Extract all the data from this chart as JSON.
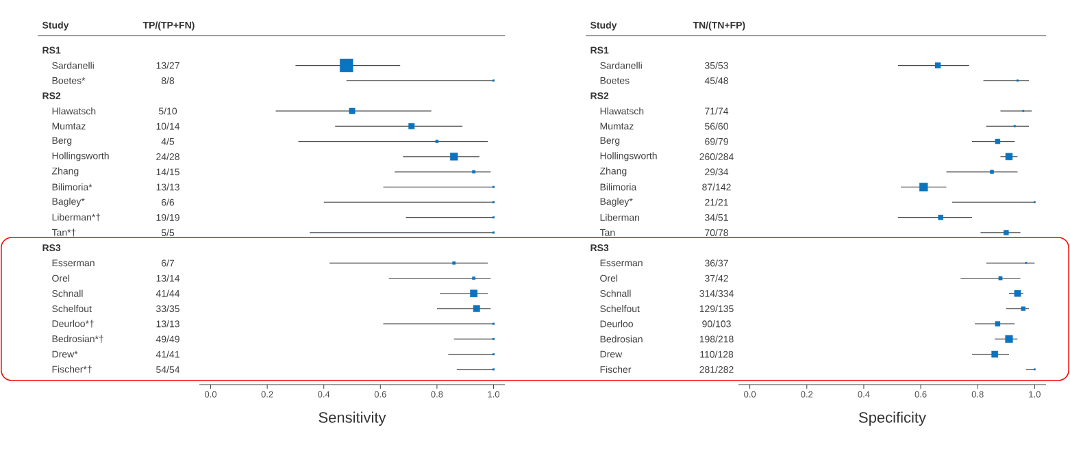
{
  "chart_data": [
    {
      "type": "bubble",
      "orientation": "horizontal",
      "marker": "square",
      "color": "#0a74c0",
      "ylabel": "Study",
      "xlabel": "Sensitivity",
      "annotations": [
        "TP/(TP+FN)"
      ],
      "categories": [
        "RS1",
        "Sardanelli",
        "Boetes*",
        "RS2",
        "Hlawatsch",
        "Mumtaz",
        "Berg",
        "Hollingsworth",
        "Zhang",
        "Bilimoria*",
        "Bagley*",
        "Liberman*†",
        "Tan*†",
        "RS3",
        "Esserman",
        "Orel",
        "Schnall",
        "Schelfout",
        "Deurloo*†",
        "Bedrosian*†",
        "Drew*",
        "Fischer*†"
      ],
      "values": [
        null,
        0.48,
        1.0,
        null,
        0.5,
        0.71,
        0.8,
        0.86,
        0.93,
        1.0,
        1.0,
        1.0,
        1.0,
        null,
        0.86,
        0.93,
        0.93,
        0.94,
        1.0,
        1.0,
        1.0,
        1.0
      ],
      "errors": [
        null,
        [
          0.3,
          0.67
        ],
        [
          0.48,
          1.0
        ],
        null,
        [
          0.23,
          0.78
        ],
        [
          0.44,
          0.89
        ],
        [
          0.31,
          0.98
        ],
        [
          0.68,
          0.95
        ],
        [
          0.65,
          0.99
        ],
        [
          0.61,
          1.0
        ],
        [
          0.4,
          1.0
        ],
        [
          0.69,
          1.0
        ],
        [
          0.35,
          1.0
        ],
        null,
        [
          0.42,
          0.98
        ],
        [
          0.63,
          0.99
        ],
        [
          0.81,
          0.98
        ],
        [
          0.8,
          0.99
        ],
        [
          0.61,
          1.0
        ],
        [
          0.86,
          1.0
        ],
        [
          0.84,
          1.0
        ],
        [
          0.87,
          1.0
        ]
      ],
      "value_labels": [
        null,
        "13/27",
        "8/8",
        null,
        "5/10",
        "10/14",
        "4/5",
        "24/28",
        "14/15",
        "13/13",
        "6/6",
        "19/19",
        "5/5",
        null,
        "6/7",
        "13/14",
        "41/44",
        "33/35",
        "13/13",
        "49/49",
        "41/41",
        "54/54"
      ],
      "sizes": [
        null,
        1,
        0.02,
        null,
        0.2,
        0.2,
        0.05,
        0.33,
        0.05,
        0.02,
        0.02,
        0.02,
        0.02,
        null,
        0.05,
        0.05,
        0.3,
        0.25,
        0.02,
        0.02,
        0.02,
        0.02
      ],
      "xlim": [
        -0.04,
        1.04
      ],
      "xticks": [
        {
          "value": 0,
          "label": "0.0"
        },
        {
          "value": 0.2,
          "label": "0.2"
        },
        {
          "value": 0.4,
          "label": "0.4"
        },
        {
          "value": 0.6,
          "label": "0.6"
        },
        {
          "value": 0.8,
          "label": "0.8"
        },
        {
          "value": 1,
          "label": "1.0"
        }
      ],
      "tick_labels": "x"
    },
    {
      "type": "bubble",
      "orientation": "horizontal",
      "marker": "square",
      "color": "#0a74c0",
      "ylabel": "Study",
      "xlabel": "Specificity",
      "annotations": [
        "TN/(TN+FP)"
      ],
      "categories": [
        "RS1",
        "Sardanelli",
        "Boetes",
        "RS2",
        "Hlawatsch",
        "Mumtaz",
        "Berg",
        "Hollingsworth",
        "Zhang",
        "Bilimoria",
        "Bagley*",
        "Liberman",
        "Tan",
        "RS3",
        "Esserman",
        "Orel",
        "Schnall",
        "Schelfout",
        "Deurloo",
        "Bedrosian",
        "Drew",
        "Fischer"
      ],
      "values": [
        null,
        0.66,
        0.94,
        null,
        0.96,
        0.93,
        0.87,
        0.91,
        0.85,
        0.61,
        1.0,
        0.67,
        0.9,
        null,
        0.97,
        0.88,
        0.94,
        0.96,
        0.87,
        0.91,
        0.86,
        1.0
      ],
      "errors": [
        null,
        [
          0.52,
          0.77
        ],
        [
          0.82,
          0.98
        ],
        null,
        [
          0.88,
          0.99
        ],
        [
          0.83,
          0.98
        ],
        [
          0.78,
          0.93
        ],
        [
          0.88,
          0.94
        ],
        [
          0.69,
          0.94
        ],
        [
          0.53,
          0.69
        ],
        [
          0.71,
          1.0
        ],
        [
          0.52,
          0.78
        ],
        [
          0.81,
          0.95
        ],
        null,
        [
          0.83,
          1.0
        ],
        [
          0.74,
          0.95
        ],
        [
          0.91,
          0.96
        ],
        [
          0.9,
          0.98
        ],
        [
          0.79,
          0.93
        ],
        [
          0.86,
          0.94
        ],
        [
          0.78,
          0.91
        ],
        [
          0.97,
          1.0
        ]
      ],
      "value_labels": [
        null,
        "35/53",
        "45/48",
        null,
        "71/74",
        "56/60",
        "69/79",
        "260/284",
        "29/34",
        "87/142",
        "21/21",
        "34/51",
        "70/78",
        null,
        "36/37",
        "37/42",
        "314/334",
        "129/135",
        "90/103",
        "198/218",
        "110/128",
        "281/282"
      ],
      "sizes": [
        null,
        0.45,
        0.05,
        null,
        0.03,
        0.05,
        0.35,
        0.7,
        0.2,
        1,
        0.03,
        0.35,
        0.35,
        null,
        0.03,
        0.2,
        0.6,
        0.25,
        0.35,
        0.8,
        0.6,
        0.03
      ],
      "xlim": [
        -0.04,
        1.04
      ],
      "xticks": [
        {
          "value": 0,
          "label": "0.0"
        },
        {
          "value": 0.2,
          "label": "0.2"
        },
        {
          "value": 0.4,
          "label": "0.4"
        },
        {
          "value": 0.6,
          "label": "0.6"
        },
        {
          "value": 0.8,
          "label": "0.8"
        },
        {
          "value": 1,
          "label": "1.0"
        }
      ],
      "tick_labels": "x"
    }
  ]
}
